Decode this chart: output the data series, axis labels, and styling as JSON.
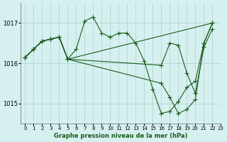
{
  "title": "Graphe pression niveau de la mer (hPa)",
  "background_color": "#d6f0f0",
  "grid_color": "#b0d8d0",
  "line_color": "#1a5c1a",
  "xlim": [
    -0.5,
    23
  ],
  "ylim": [
    1014.5,
    1017.5
  ],
  "yticks": [
    1015,
    1016,
    1017
  ],
  "xticks": [
    0,
    1,
    2,
    3,
    4,
    5,
    6,
    7,
    8,
    9,
    10,
    11,
    12,
    13,
    14,
    15,
    16,
    17,
    18,
    19,
    20,
    21,
    22,
    23
  ],
  "line1_x": [
    0,
    1,
    2,
    3,
    4,
    5,
    6,
    7,
    8,
    9,
    10,
    11,
    12,
    13,
    14,
    15,
    16,
    17,
    18,
    19,
    20,
    21,
    22
  ],
  "line1_y": [
    1016.15,
    1016.35,
    1016.55,
    1016.6,
    1016.65,
    1016.1,
    1016.35,
    1017.05,
    1017.15,
    1016.75,
    1016.65,
    1016.75,
    1016.75,
    1016.5,
    1016.05,
    1015.35,
    1014.75,
    1014.8,
    1015.05,
    1015.4,
    1015.55,
    1016.5,
    1017.0
  ],
  "line2_x": [
    0,
    1,
    2,
    3,
    4,
    5,
    22
  ],
  "line2_y": [
    1016.15,
    1016.35,
    1016.55,
    1016.6,
    1016.65,
    1016.1,
    1017.0
  ],
  "line3_x": [
    0,
    1,
    2,
    3,
    4,
    5,
    16,
    17,
    18,
    19,
    20,
    21,
    22
  ],
  "line3_y": [
    1016.15,
    1016.35,
    1016.55,
    1016.6,
    1016.65,
    1016.1,
    1015.95,
    1016.5,
    1016.45,
    1015.75,
    1015.25,
    1016.4,
    1016.85
  ],
  "line4_x": [
    0,
    1,
    2,
    3,
    4,
    5,
    16,
    17,
    18,
    19,
    20,
    21,
    22
  ],
  "line4_y": [
    1016.15,
    1016.35,
    1016.55,
    1016.6,
    1016.65,
    1016.1,
    1015.5,
    1015.15,
    1014.75,
    1014.85,
    1015.1,
    1016.5,
    1017.0
  ]
}
